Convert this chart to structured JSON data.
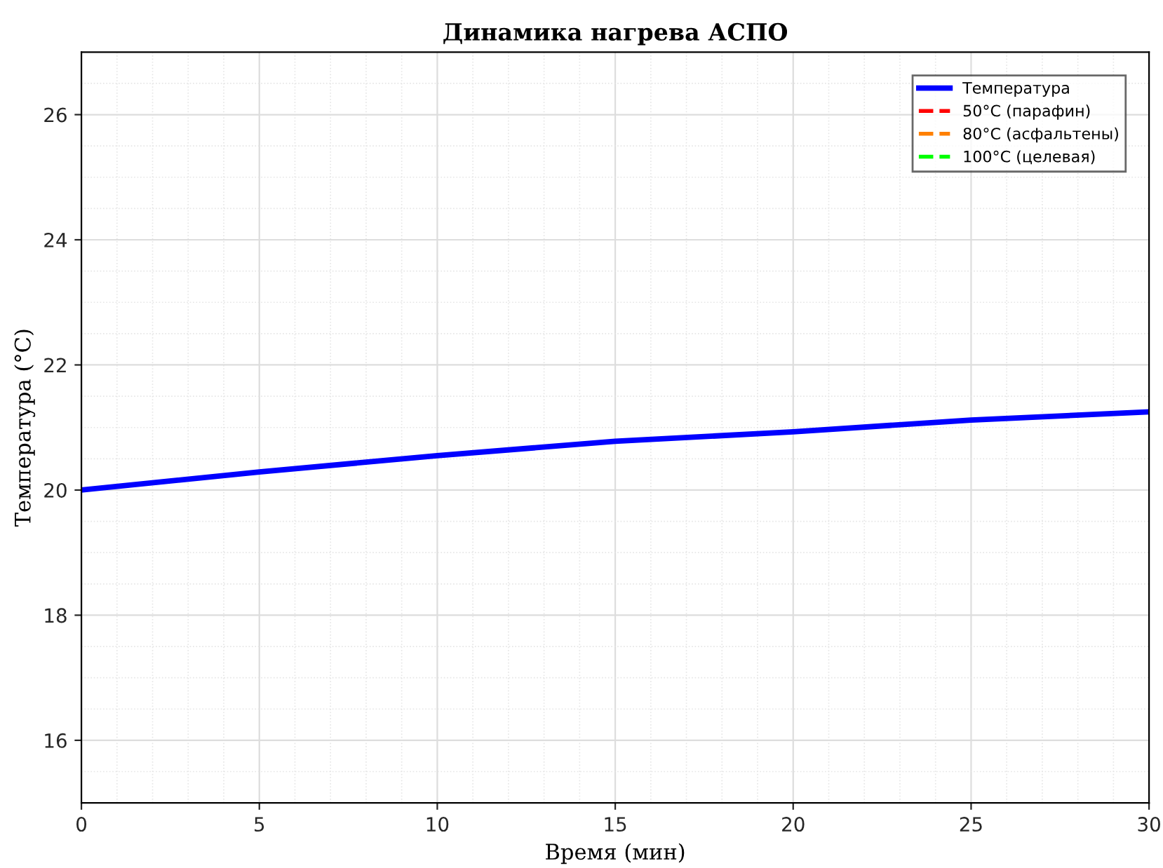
{
  "chart_data": {
    "type": "line",
    "title": "Динамика нагрева АСПО",
    "xlabel": "Время (мин)",
    "ylabel": "Температура (°C)",
    "x": [
      0,
      5,
      10,
      15,
      20,
      25,
      30
    ],
    "series": [
      {
        "name": "Температура",
        "color": "#0000ff",
        "values": [
          20.0,
          20.29,
          20.55,
          20.78,
          20.93,
          21.12,
          21.25
        ]
      },
      {
        "name": "50°C (парафин)",
        "color": "#ff0000",
        "line_style": "dashed",
        "values": [
          null,
          null,
          null,
          null,
          null,
          null,
          null
        ]
      },
      {
        "name": "80°C (асфальтены)",
        "color": "#ff8000",
        "line_style": "dashed",
        "values": [
          null,
          null,
          null,
          null,
          null,
          null,
          null
        ]
      },
      {
        "name": "100°C (целевая)",
        "color": "#00ff00",
        "line_style": "dashed",
        "values": [
          null,
          null,
          null,
          null,
          null,
          null,
          null
        ]
      }
    ],
    "xlim": [
      0,
      30
    ],
    "ylim": [
      15,
      27
    ],
    "xticks": [
      0,
      5,
      10,
      15,
      20,
      25,
      30
    ],
    "yticks": [
      16,
      18,
      20,
      22,
      24,
      26
    ],
    "grid": true,
    "legend": "top right",
    "line_style": "solid"
  }
}
